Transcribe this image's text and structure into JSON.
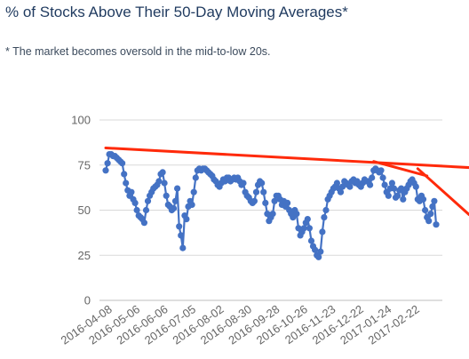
{
  "title": "% of Stocks Above Their 50-Day Moving Averages*",
  "subtitle": "* The market becomes oversold in the mid-to-low 20s.",
  "chart_data": {
    "type": "line",
    "title": "% of Stocks Above Their 50-Day Moving Averages*",
    "subtitle": "* The market becomes oversold in the mid-to-low 20s.",
    "xlabel": "",
    "ylabel": "",
    "ylim": [
      0,
      100
    ],
    "yticks": [
      "0",
      "25",
      "50",
      "75",
      "100"
    ],
    "xticks": [
      "2016-04-08",
      "2016-05-06",
      "2016-06-06",
      "2016-07-05",
      "2016-08-02",
      "2016-08-30",
      "2016-09-28",
      "2016-10-26",
      "2016-11-23",
      "2016-12-22",
      "2017-01-24",
      "2017-02-22"
    ],
    "grid": "horizontal",
    "legend": "none",
    "series": [
      {
        "color": "#4472c4",
        "marker": "circle",
        "values": [
          72,
          76,
          81,
          81,
          80,
          80,
          79,
          78,
          77,
          76,
          70,
          65,
          61,
          58,
          60,
          56,
          54,
          50,
          47,
          46,
          45,
          43,
          50,
          55,
          58,
          60,
          62,
          63,
          64,
          66,
          70,
          71,
          65,
          58,
          53,
          52,
          50,
          51,
          55,
          62,
          41,
          36,
          29,
          47,
          45,
          52,
          55,
          53,
          60,
          68,
          72,
          73,
          72,
          73,
          73,
          72,
          71,
          70,
          69,
          67,
          66,
          64,
          63,
          65,
          67,
          66,
          68,
          68,
          66,
          67,
          68,
          67,
          68,
          66,
          64,
          65,
          60,
          58,
          57,
          55,
          54,
          55,
          60,
          64,
          66,
          65,
          60,
          54,
          48,
          44,
          46,
          48,
          55,
          58,
          58,
          56,
          53,
          55,
          52,
          54,
          50,
          48,
          46,
          50,
          48,
          40,
          36,
          38,
          40,
          43,
          45,
          40,
          33,
          30,
          28,
          25,
          24,
          27,
          38,
          46,
          50,
          56,
          58,
          60,
          62,
          63,
          65,
          62,
          60,
          63,
          66,
          65,
          64,
          63,
          66,
          67,
          65,
          66,
          64,
          63,
          65,
          67,
          66,
          66,
          64,
          68,
          72,
          73,
          72,
          71,
          72,
          68,
          64,
          60,
          58,
          62,
          65,
          62,
          57,
          58,
          61,
          62,
          56,
          60,
          62,
          64,
          66,
          67,
          65,
          63,
          56,
          55,
          58,
          56,
          50,
          46,
          44,
          48,
          52,
          55,
          42
        ]
      }
    ],
    "annotations": [
      {
        "type": "trendline",
        "color": "#ff2a0a",
        "from": {
          "x": 0,
          "y": 84.5
        },
        "to": {
          "x": 200,
          "y": 73.5
        }
      },
      {
        "type": "trendline",
        "color": "#ff2a0a",
        "from": {
          "x": 146,
          "y": 77
        },
        "to": {
          "x": 175,
          "y": 69
        }
      },
      {
        "type": "trendline",
        "color": "#ff2a0a",
        "from": {
          "x": 170,
          "y": 73
        },
        "to": {
          "x": 198,
          "y": 47.5
        }
      }
    ]
  }
}
